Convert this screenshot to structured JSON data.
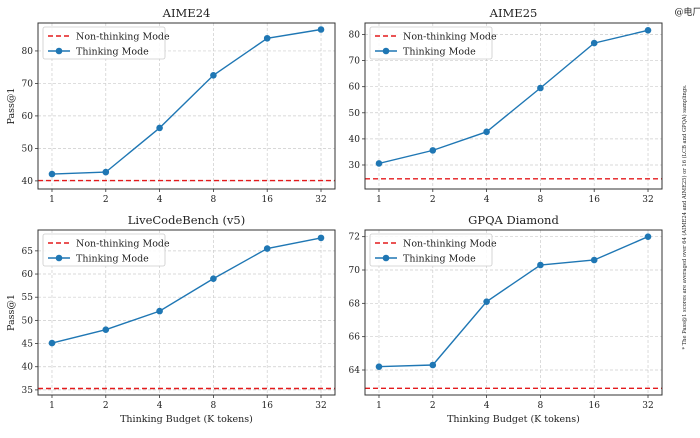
{
  "watermark": "@电厂",
  "footnote": "* The Pass@1 scores are averaged over 64 (AIME24 and AIME25) or 16 (LCB and GPQA) samplings.",
  "colors": {
    "thinking": "#1f77b4",
    "non_thinking": "#e41a1c",
    "grid": "#cccccc"
  },
  "legend": {
    "non_thinking": "Non-thinking Mode",
    "thinking": "Thinking Mode",
    "placement": "top-left"
  },
  "chart_data": [
    {
      "type": "line",
      "title": "AIME24",
      "ylabel": "Pass@1",
      "xlabel": "",
      "x_scale": "log2",
      "categories": [
        "1",
        "2",
        "4",
        "8",
        "16",
        "32"
      ],
      "x": [
        1,
        2,
        4,
        8,
        16,
        32
      ],
      "yticks": [
        40,
        50,
        60,
        70,
        80
      ],
      "ylim": [
        37.5,
        88.6
      ],
      "grid": true,
      "series": [
        {
          "name": "Thinking Mode",
          "values": [
            42.1,
            42.7,
            56.3,
            72.5,
            83.9,
            86.6
          ]
        }
      ],
      "baseline": {
        "name": "Non-thinking Mode",
        "value": 40.1
      }
    },
    {
      "type": "line",
      "title": "AIME25",
      "ylabel": "",
      "xlabel": "",
      "x_scale": "log2",
      "categories": [
        "1",
        "2",
        "4",
        "8",
        "16",
        "32"
      ],
      "x": [
        1,
        2,
        4,
        8,
        16,
        32
      ],
      "yticks": [
        30,
        40,
        50,
        60,
        70,
        80
      ],
      "ylim": [
        20.8,
        84.4
      ],
      "grid": true,
      "series": [
        {
          "name": "Thinking Mode",
          "values": [
            30.6,
            35.6,
            42.7,
            59.5,
            76.7,
            81.6
          ]
        }
      ],
      "baseline": {
        "name": "Non-thinking Mode",
        "value": 24.7
      }
    },
    {
      "type": "line",
      "title": "LiveCodeBench (v5)",
      "ylabel": "Pass@1",
      "xlabel": "Thinking Budget (K tokens)",
      "x_scale": "log2",
      "categories": [
        "1",
        "2",
        "4",
        "8",
        "16",
        "32"
      ],
      "x": [
        1,
        2,
        4,
        8,
        16,
        32
      ],
      "yticks": [
        35,
        40,
        45,
        50,
        55,
        60,
        65
      ],
      "ylim": [
        33.9,
        69.5
      ],
      "grid": true,
      "series": [
        {
          "name": "Thinking Mode",
          "values": [
            45.1,
            48.0,
            52.0,
            59.0,
            65.5,
            67.8
          ]
        }
      ],
      "baseline": {
        "name": "Non-thinking Mode",
        "value": 35.3
      }
    },
    {
      "type": "line",
      "title": "GPQA Diamond",
      "ylabel": "",
      "xlabel": "Thinking Budget (K tokens)",
      "x_scale": "log2",
      "categories": [
        "1",
        "2",
        "4",
        "8",
        "16",
        "32"
      ],
      "x": [
        1,
        2,
        4,
        8,
        16,
        32
      ],
      "yticks": [
        64,
        66,
        68,
        70,
        72
      ],
      "ylim": [
        62.5,
        72.4
      ],
      "grid": true,
      "series": [
        {
          "name": "Thinking Mode",
          "values": [
            64.2,
            64.3,
            68.1,
            70.3,
            70.6,
            72.0
          ]
        }
      ],
      "baseline": {
        "name": "Non-thinking Mode",
        "value": 62.9
      }
    }
  ]
}
